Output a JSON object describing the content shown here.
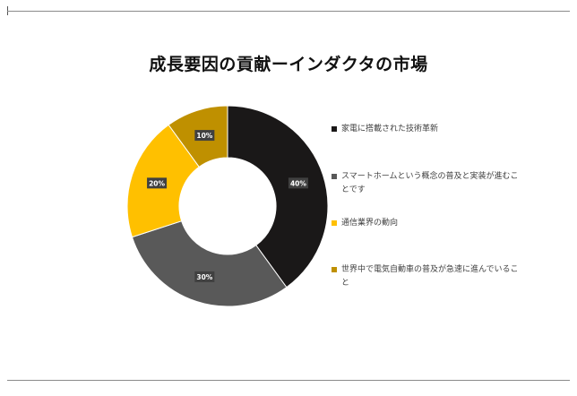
{
  "chart_data": {
    "type": "pie",
    "donut": true,
    "title": "成長要因の貢献ーインダクタの市場",
    "categories": [
      "家電に搭載された技術革新",
      "スマートホームという概念の普及と実装が進むことです",
      "通信業界の動向",
      "世界中で電気自動車の普及が急速に進んでいること"
    ],
    "values": [
      40,
      30,
      20,
      10
    ],
    "data_labels": [
      "40%",
      "30%",
      "20%",
      "10%"
    ],
    "colors": [
      "#1a1818",
      "#595959",
      "#ffc000",
      "#bf9000"
    ],
    "legend_position": "right"
  }
}
